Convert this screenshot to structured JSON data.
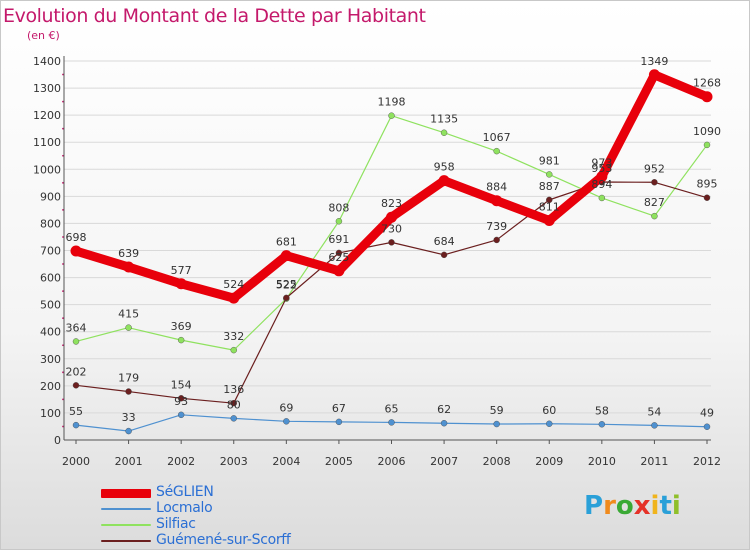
{
  "title": "Evolution du Montant de la Dette par Habitant",
  "subtitle": "(en €)",
  "logo_text": "Proxiti",
  "chart_data": {
    "type": "line",
    "title": "Evolution du Montant de la Dette par Habitant",
    "subtitle": "(en €)",
    "x": [
      "2000",
      "2001",
      "2002",
      "2003",
      "2004",
      "2005",
      "2006",
      "2007",
      "2008",
      "2009",
      "2010",
      "2011",
      "2012"
    ],
    "y_ticks": [
      "0",
      "100",
      "200",
      "300",
      "400",
      "500",
      "600",
      "700",
      "800",
      "900",
      "1000",
      "1100",
      "1200",
      "1300",
      "1400"
    ],
    "ylim": [
      0,
      1400
    ],
    "legend_position": "bottom-left",
    "series": [
      {
        "name": "SéGLIEN",
        "color": "#e8000b",
        "values": [
          698,
          639,
          577,
          524,
          681,
          625,
          823,
          958,
          884,
          811,
          973,
          1349,
          1268
        ]
      },
      {
        "name": "Locmalo",
        "color": "#4f91d0",
        "values": [
          55,
          33,
          93,
          80,
          69,
          67,
          65,
          62,
          59,
          60,
          58,
          54,
          49
        ]
      },
      {
        "name": "Silfiac",
        "color": "#8fe25f",
        "values": [
          364,
          415,
          369,
          332,
          522,
          808,
          1198,
          1135,
          1067,
          981,
          894,
          827,
          1090
        ]
      },
      {
        "name": "Guémené-sur-Scorff",
        "color": "#6b1f1f",
        "values": [
          202,
          179,
          154,
          136,
          525,
          691,
          730,
          684,
          739,
          887,
          953,
          952,
          895
        ]
      }
    ]
  }
}
